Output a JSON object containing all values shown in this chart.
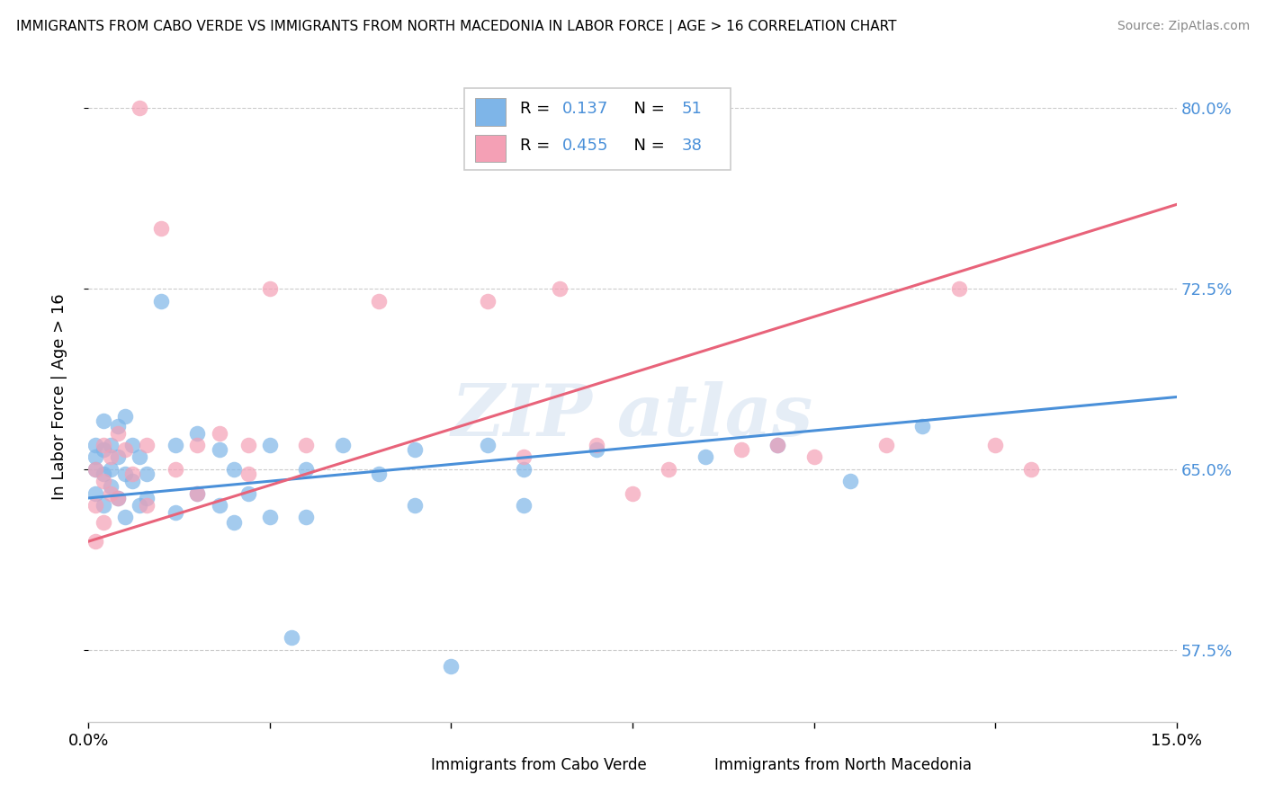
{
  "title": "IMMIGRANTS FROM CABO VERDE VS IMMIGRANTS FROM NORTH MACEDONIA IN LABOR FORCE | AGE > 16 CORRELATION CHART",
  "source": "Source: ZipAtlas.com",
  "ylabel": "In Labor Force | Age > 16",
  "ytick_vals": [
    0.575,
    0.65,
    0.725,
    0.8
  ],
  "xlim": [
    0.0,
    0.15
  ],
  "ylim": [
    0.545,
    0.815
  ],
  "cabo_verde_color": "#7eb5e8",
  "north_macedonia_color": "#f4a0b5",
  "cabo_verde_line_color": "#4a90d9",
  "north_macedonia_line_color": "#e8637a",
  "R_cabo": 0.137,
  "N_cabo": 51,
  "R_mace": 0.455,
  "N_mace": 38,
  "legend_labels": [
    "Immigrants from Cabo Verde",
    "Immigrants from North Macedonia"
  ],
  "cabo_verde_pts": [
    [
      0.001,
      0.65
    ],
    [
      0.001,
      0.64
    ],
    [
      0.001,
      0.66
    ],
    [
      0.001,
      0.655
    ],
    [
      0.002,
      0.67
    ],
    [
      0.002,
      0.658
    ],
    [
      0.002,
      0.648
    ],
    [
      0.002,
      0.635
    ],
    [
      0.003,
      0.66
    ],
    [
      0.003,
      0.65
    ],
    [
      0.003,
      0.643
    ],
    [
      0.004,
      0.668
    ],
    [
      0.004,
      0.655
    ],
    [
      0.004,
      0.638
    ],
    [
      0.005,
      0.672
    ],
    [
      0.005,
      0.648
    ],
    [
      0.005,
      0.63
    ],
    [
      0.006,
      0.66
    ],
    [
      0.006,
      0.645
    ],
    [
      0.007,
      0.655
    ],
    [
      0.007,
      0.635
    ],
    [
      0.008,
      0.648
    ],
    [
      0.008,
      0.638
    ],
    [
      0.01,
      0.72
    ],
    [
      0.012,
      0.66
    ],
    [
      0.012,
      0.632
    ],
    [
      0.015,
      0.665
    ],
    [
      0.015,
      0.64
    ],
    [
      0.018,
      0.658
    ],
    [
      0.018,
      0.635
    ],
    [
      0.02,
      0.65
    ],
    [
      0.02,
      0.628
    ],
    [
      0.022,
      0.64
    ],
    [
      0.025,
      0.66
    ],
    [
      0.025,
      0.63
    ],
    [
      0.028,
      0.58
    ],
    [
      0.03,
      0.65
    ],
    [
      0.03,
      0.63
    ],
    [
      0.035,
      0.66
    ],
    [
      0.04,
      0.648
    ],
    [
      0.045,
      0.658
    ],
    [
      0.045,
      0.635
    ],
    [
      0.05,
      0.568
    ],
    [
      0.055,
      0.66
    ],
    [
      0.06,
      0.65
    ],
    [
      0.06,
      0.635
    ],
    [
      0.07,
      0.658
    ],
    [
      0.085,
      0.655
    ],
    [
      0.095,
      0.66
    ],
    [
      0.105,
      0.645
    ],
    [
      0.115,
      0.668
    ]
  ],
  "north_macedonia_pts": [
    [
      0.001,
      0.65
    ],
    [
      0.001,
      0.635
    ],
    [
      0.001,
      0.62
    ],
    [
      0.002,
      0.66
    ],
    [
      0.002,
      0.645
    ],
    [
      0.002,
      0.628
    ],
    [
      0.003,
      0.655
    ],
    [
      0.003,
      0.64
    ],
    [
      0.004,
      0.665
    ],
    [
      0.004,
      0.638
    ],
    [
      0.005,
      0.658
    ],
    [
      0.006,
      0.648
    ],
    [
      0.007,
      0.8
    ],
    [
      0.008,
      0.66
    ],
    [
      0.008,
      0.635
    ],
    [
      0.01,
      0.75
    ],
    [
      0.012,
      0.65
    ],
    [
      0.015,
      0.66
    ],
    [
      0.015,
      0.64
    ],
    [
      0.018,
      0.665
    ],
    [
      0.022,
      0.66
    ],
    [
      0.022,
      0.648
    ],
    [
      0.025,
      0.725
    ],
    [
      0.03,
      0.66
    ],
    [
      0.04,
      0.72
    ],
    [
      0.055,
      0.72
    ],
    [
      0.06,
      0.655
    ],
    [
      0.065,
      0.725
    ],
    [
      0.07,
      0.66
    ],
    [
      0.075,
      0.64
    ],
    [
      0.08,
      0.65
    ],
    [
      0.09,
      0.658
    ],
    [
      0.095,
      0.66
    ],
    [
      0.1,
      0.655
    ],
    [
      0.11,
      0.66
    ],
    [
      0.12,
      0.725
    ],
    [
      0.125,
      0.66
    ],
    [
      0.13,
      0.65
    ]
  ],
  "cabo_line": [
    0.0,
    0.15,
    0.638,
    0.68
  ],
  "mace_line": [
    0.0,
    0.15,
    0.62,
    0.76
  ]
}
